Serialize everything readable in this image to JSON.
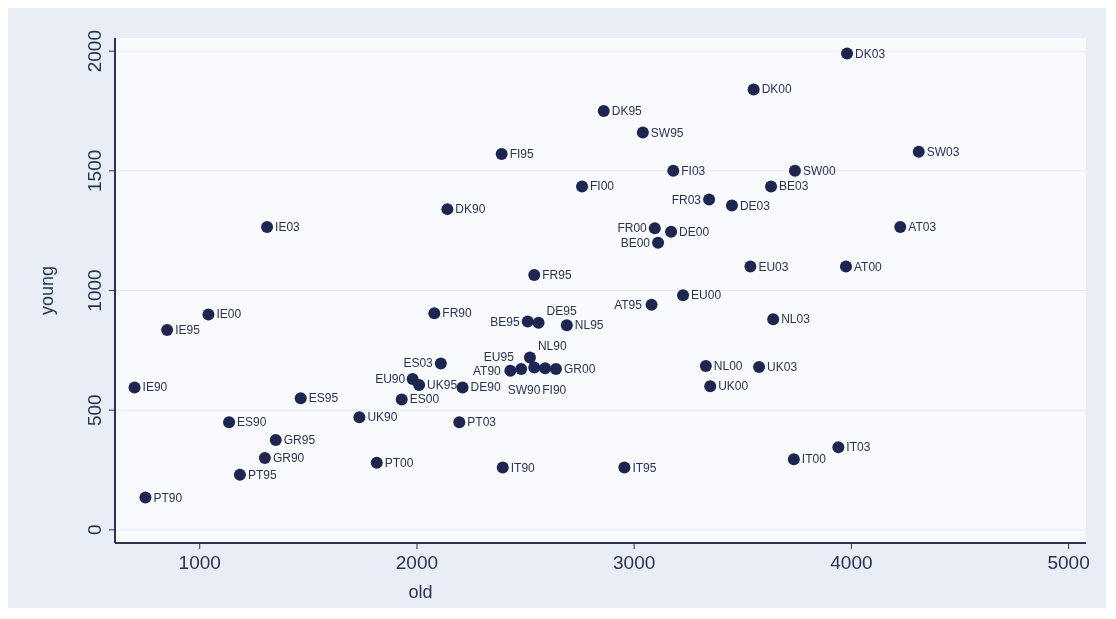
{
  "chart_data": {
    "type": "scatter",
    "xlabel": "old",
    "ylabel": "young",
    "xlim": [
      610,
      5080
    ],
    "ylim": [
      -55,
      2055
    ],
    "xticks": [
      1000,
      2000,
      3000,
      4000,
      5000
    ],
    "yticks": [
      0,
      500,
      1000,
      1500,
      2000
    ],
    "grid": "y",
    "marker": "circle",
    "x": [
      3980,
      3550,
      2860,
      3040,
      4310,
      3180,
      3740,
      3630,
      2760,
      3345,
      3450,
      3095,
      3170,
      3110,
      4225,
      3535,
      3975,
      3225,
      3080,
      3640,
      2690,
      3330,
      3575,
      3350,
      3940,
      3735,
      2955,
      1310,
      2140,
      2390,
      2540,
      1040,
      850,
      2080,
      2510,
      2560,
      2110,
      700,
      1465,
      1980,
      2010,
      1930,
      2210,
      1735,
      2195,
      1135,
      1350,
      1300,
      1185,
      1815,
      2395,
      750,
      2520,
      2430,
      2480,
      2540,
      2590,
      2640
    ],
    "series": [
      {
        "color": "#1c2650",
        "values": [
          1990,
          1840,
          1750,
          1660,
          1580,
          1500,
          1500,
          1435,
          1435,
          1380,
          1355,
          1260,
          1245,
          1200,
          1265,
          1100,
          1100,
          980,
          940,
          880,
          855,
          685,
          680,
          600,
          345,
          295,
          260,
          1265,
          1340,
          1570,
          1065,
          900,
          835,
          905,
          870,
          865,
          695,
          595,
          550,
          630,
          605,
          545,
          595,
          470,
          450,
          450,
          375,
          300,
          230,
          280,
          260,
          135,
          720,
          665,
          672,
          678,
          675,
          672
        ],
        "value_labels": [
          "DK03",
          "DK00",
          "DK95",
          "SW95",
          "SW03",
          "FI03",
          "SW00",
          "BE03",
          "FI00",
          "FR03",
          "DE03",
          "FR00",
          "DE00",
          "BE00",
          "AT03",
          "EU03",
          "AT00",
          "EU00",
          "AT95",
          "NL03",
          "NL95",
          "NL00",
          "UK03",
          "UK00",
          "IT03",
          "IT00",
          "IT95",
          "IE03",
          "DK90",
          "FI95",
          "FR95",
          "IE00",
          "IE95",
          "FR90",
          "BE95",
          "DE95",
          "ES03",
          "IE90",
          "ES95",
          "EU90",
          "UK95",
          "ES00",
          "DE90",
          "UK90",
          "PT03",
          "ES90",
          "GR95",
          "GR90",
          "PT95",
          "PT00",
          "IT90",
          "PT90",
          "NL90",
          "AT90",
          "EU95",
          "FI90",
          "SW90",
          "GR00"
        ]
      }
    ]
  }
}
